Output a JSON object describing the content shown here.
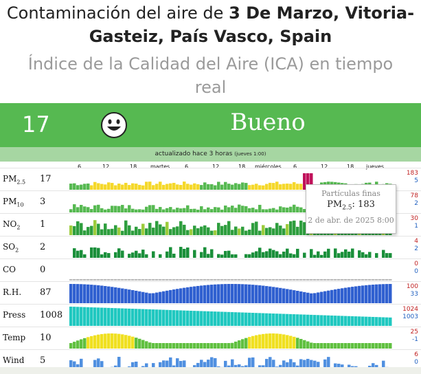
{
  "header": {
    "title_prefix": "Contaminación del aire de ",
    "title_place": "3 De Marzo, Vitoria-Gasteiz, País Vasco, Spain",
    "subtitle": "Índice de la Calidad del Aire (ICA) en tiempo real"
  },
  "banner": {
    "aqi": "17",
    "level": "Bueno",
    "face_icon": "smiley-face-icon",
    "color": "#56b951"
  },
  "updated": {
    "text": "actualizado hace 3 horas",
    "detail": "(jueves 1:00)"
  },
  "axis_labels": [
    "6",
    "12",
    "18",
    "martes",
    "6",
    "12",
    "18",
    "miércoles",
    "6",
    "12",
    "18",
    "jueves"
  ],
  "rows": [
    {
      "name": "PM",
      "sub": "2.5",
      "value": "17",
      "max": "183",
      "min": "5"
    },
    {
      "name": "PM",
      "sub": "10",
      "value": "3",
      "max": "78",
      "min": "2"
    },
    {
      "name": "NO",
      "sub": "2",
      "value": "1",
      "max": "30",
      "min": "1"
    },
    {
      "name": "SO",
      "sub": "2",
      "value": "2",
      "max": "4",
      "min": "2"
    },
    {
      "name": "CO",
      "sub": "",
      "value": "0",
      "max": "0",
      "min": "0"
    },
    {
      "name": "R.H.",
      "sub": "",
      "value": "87",
      "max": "100",
      "min": "33"
    },
    {
      "name": "Press",
      "sub": "",
      "value": "1008",
      "max": "1024",
      "min": "1003"
    },
    {
      "name": "Temp",
      "sub": "",
      "value": "10",
      "max": "25",
      "min": "-1"
    },
    {
      "name": "Wind",
      "sub": "",
      "value": "5",
      "max": "6",
      "min": "0"
    }
  ],
  "tooltip": {
    "label": "Partículas finas",
    "pollutant": "PM",
    "pollutant_sub": "2.5",
    "value_text": ": 183",
    "date": "2 de abr. de 2025 8:00"
  },
  "colors": {
    "good": "#56b951",
    "moderate": "#f5d82a",
    "unhealthy": "#c0105a",
    "rh": "#3060d0",
    "press": "#20c8c0",
    "wind": "#5090e0"
  }
}
